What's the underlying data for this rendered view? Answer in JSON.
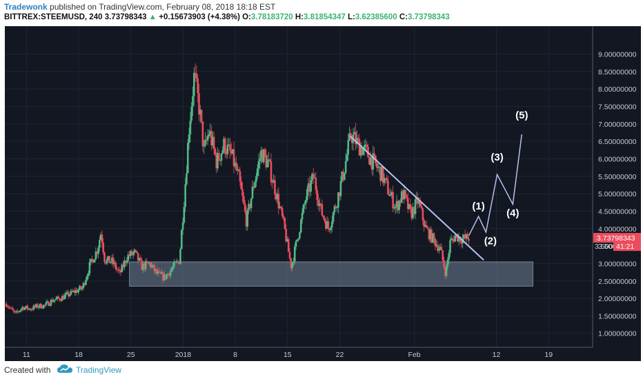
{
  "header": {
    "author": "Tradewonk",
    "published": "published on TradingView.com, February 08, 2018 18:18 EST",
    "symbol": "BITTREX:STEEMUSD, 240",
    "last": "3.73798343",
    "change_arrow": "▲",
    "change": "+0.15673903 (+4.38%)",
    "o_label": "O:",
    "o_value": "3.78183720",
    "h_label": "H:",
    "h_value": "3.81854347",
    "l_label": "L:",
    "l_value": "3.62385600",
    "c_label": "C:",
    "c_value": "3.73798343"
  },
  "footer": {
    "created_with": "Created with",
    "brand": "TradingView",
    "brand_icon": "tradingview-cloud-icon"
  },
  "colors": {
    "background": "#131722",
    "up": "#53b987",
    "down": "#eb4d5c",
    "zone": "#6f7f96",
    "annotation": "#dfe3ea",
    "price_tag": "#eb4d5c"
  },
  "chart_data": {
    "type": "candlestick",
    "symbol": "BITTREX:STEEMUSD",
    "interval": "240",
    "y_ticks": [
      "9.00000000",
      "8.50000000",
      "8.00000000",
      "7.50000000",
      "7.00000000",
      "6.50000000",
      "6.00000000",
      "5.50000000",
      "5.00000000",
      "4.50000000",
      "4.00000000",
      "3.50000000",
      "3.00000000",
      "2.50000000",
      "2.00000000",
      "1.50000000",
      "1.00000000"
    ],
    "y_tick_values": [
      9,
      8.5,
      8,
      7.5,
      7,
      6.5,
      6,
      5.5,
      5,
      4.5,
      4,
      3.5,
      3,
      2.5,
      2,
      1.5,
      1
    ],
    "ylim": [
      0.6,
      9.8
    ],
    "x_ticks": [
      {
        "label": "11",
        "day": 11
      },
      {
        "label": "18",
        "day": 18
      },
      {
        "label": "25",
        "day": 25
      },
      {
        "label": "2018",
        "day": 32
      },
      {
        "label": "8",
        "day": 39
      },
      {
        "label": "15",
        "day": 46
      },
      {
        "label": "22",
        "day": 53
      },
      {
        "label": "Feb",
        "day": 63
      },
      {
        "label": "12",
        "day": 74
      },
      {
        "label": "19",
        "day": 81
      }
    ],
    "xlim_days": [
      8.1,
      86.9
    ],
    "xlim_note_start": "December 8, 2017",
    "last_price_label": "3.73798343",
    "current_tick_label": "3.500",
    "countdown_label": "41:21",
    "candles_ohlc_path": [
      [
        8.3,
        1.85
      ],
      [
        9.5,
        1.55
      ],
      [
        10.5,
        1.75
      ],
      [
        11.5,
        1.7
      ],
      [
        12.5,
        1.78
      ],
      [
        13.5,
        1.8
      ],
      [
        14.5,
        1.95
      ],
      [
        15.5,
        2.0
      ],
      [
        16.5,
        2.1
      ],
      [
        17.5,
        2.2
      ],
      [
        18.5,
        2.3
      ],
      [
        19.5,
        2.95
      ],
      [
        20.5,
        3.4
      ],
      [
        21,
        3.9
      ],
      [
        21.5,
        3.1
      ],
      [
        22.5,
        3.05
      ],
      [
        23.5,
        2.7
      ],
      [
        24.5,
        3.2
      ],
      [
        25.5,
        3.3
      ],
      [
        26.5,
        2.9
      ],
      [
        27.5,
        3.0
      ],
      [
        28.5,
        2.7
      ],
      [
        29.5,
        2.6
      ],
      [
        30.5,
        2.85
      ],
      [
        31.5,
        3.1
      ],
      [
        32.2,
        5.0
      ],
      [
        32.8,
        6.9
      ],
      [
        33.5,
        8.4
      ],
      [
        34.2,
        7.4
      ],
      [
        34.8,
        6.2
      ],
      [
        35.5,
        6.8
      ],
      [
        36.5,
        5.9
      ],
      [
        37.5,
        6.4
      ],
      [
        38.5,
        6.1
      ],
      [
        39.5,
        5.4
      ],
      [
        40.5,
        4.2
      ],
      [
        41.5,
        5.3
      ],
      [
        42.5,
        6.2
      ],
      [
        43.5,
        5.8
      ],
      [
        44.5,
        5.0
      ],
      [
        45.5,
        4.1
      ],
      [
        46.5,
        2.9
      ],
      [
        47.5,
        3.9
      ],
      [
        48.5,
        4.9
      ],
      [
        49.5,
        5.5
      ],
      [
        50.5,
        4.5
      ],
      [
        51.5,
        4.0
      ],
      [
        52.5,
        4.7
      ],
      [
        53.5,
        5.6
      ],
      [
        54.5,
        6.7
      ],
      [
        55.5,
        6.4
      ],
      [
        56.5,
        6.2
      ],
      [
        57.5,
        5.9
      ],
      [
        58.5,
        5.6
      ],
      [
        59.5,
        5.1
      ],
      [
        60.5,
        4.6
      ],
      [
        61.5,
        5.0
      ],
      [
        62.5,
        4.4
      ],
      [
        63.5,
        4.8
      ],
      [
        64.5,
        4.0
      ],
      [
        65.5,
        3.7
      ],
      [
        66.5,
        3.4
      ],
      [
        67.2,
        2.7
      ],
      [
        67.8,
        3.6
      ],
      [
        68.5,
        3.8
      ],
      [
        69.5,
        3.7
      ],
      [
        70.3,
        3.74
      ]
    ],
    "support_zone": {
      "price_low": 2.35,
      "price_high": 3.05,
      "from_day": 24.8,
      "to_day": 78.9
    },
    "trendline": {
      "from": {
        "day": 54.4,
        "price": 6.65
      },
      "to": {
        "day": 72.3,
        "price": 3.1
      }
    },
    "wave_projection": [
      {
        "day": 70.3,
        "price": 3.8
      },
      {
        "day": 71.6,
        "price": 4.35
      },
      {
        "day": 72.6,
        "price": 3.9
      },
      {
        "day": 74.1,
        "price": 5.55
      },
      {
        "day": 76.2,
        "price": 4.7
      },
      {
        "day": 77.4,
        "price": 6.7
      }
    ],
    "wave_labels": [
      {
        "text": "(1)",
        "day": 71.6,
        "price": 4.55
      },
      {
        "text": "(2)",
        "day": 73.2,
        "price": 3.55
      },
      {
        "text": "(3)",
        "day": 74.1,
        "price": 5.95
      },
      {
        "text": "(4)",
        "day": 76.2,
        "price": 4.35
      },
      {
        "text": "(5)",
        "day": 77.4,
        "price": 7.15
      }
    ]
  }
}
